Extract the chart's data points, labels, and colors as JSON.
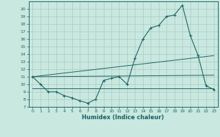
{
  "xlabel": "Humidex (Indice chaleur)",
  "xlim": [
    -0.5,
    23.5
  ],
  "ylim": [
    7,
    21
  ],
  "xticks": [
    0,
    1,
    2,
    3,
    4,
    5,
    6,
    7,
    8,
    9,
    10,
    11,
    12,
    13,
    14,
    15,
    16,
    17,
    18,
    19,
    20,
    21,
    22,
    23
  ],
  "yticks": [
    7,
    8,
    9,
    10,
    11,
    12,
    13,
    14,
    15,
    16,
    17,
    18,
    19,
    20
  ],
  "bg_color": "#c8e8e0",
  "grid_color": "#a8c8c0",
  "line_color": "#1a6060",
  "line1_x": [
    0,
    1,
    2,
    3,
    4,
    5,
    6,
    7,
    8,
    9,
    10,
    11,
    12,
    13,
    14,
    15,
    16,
    17,
    18,
    19,
    20,
    21,
    22,
    23
  ],
  "line1_y": [
    11,
    10,
    9,
    9,
    8.5,
    8.2,
    7.8,
    7.5,
    8.0,
    10.5,
    10.8,
    11.0,
    10.0,
    13.5,
    16.0,
    17.5,
    17.8,
    19.0,
    19.2,
    20.5,
    16.5,
    13.8,
    9.8,
    9.3
  ],
  "line2_x": [
    0,
    23
  ],
  "line2_y": [
    11,
    13.8
  ],
  "line3_x": [
    0,
    23
  ],
  "line3_y": [
    9.5,
    9.5
  ],
  "line4_x": [
    0,
    23
  ],
  "line4_y": [
    11,
    11.2
  ]
}
